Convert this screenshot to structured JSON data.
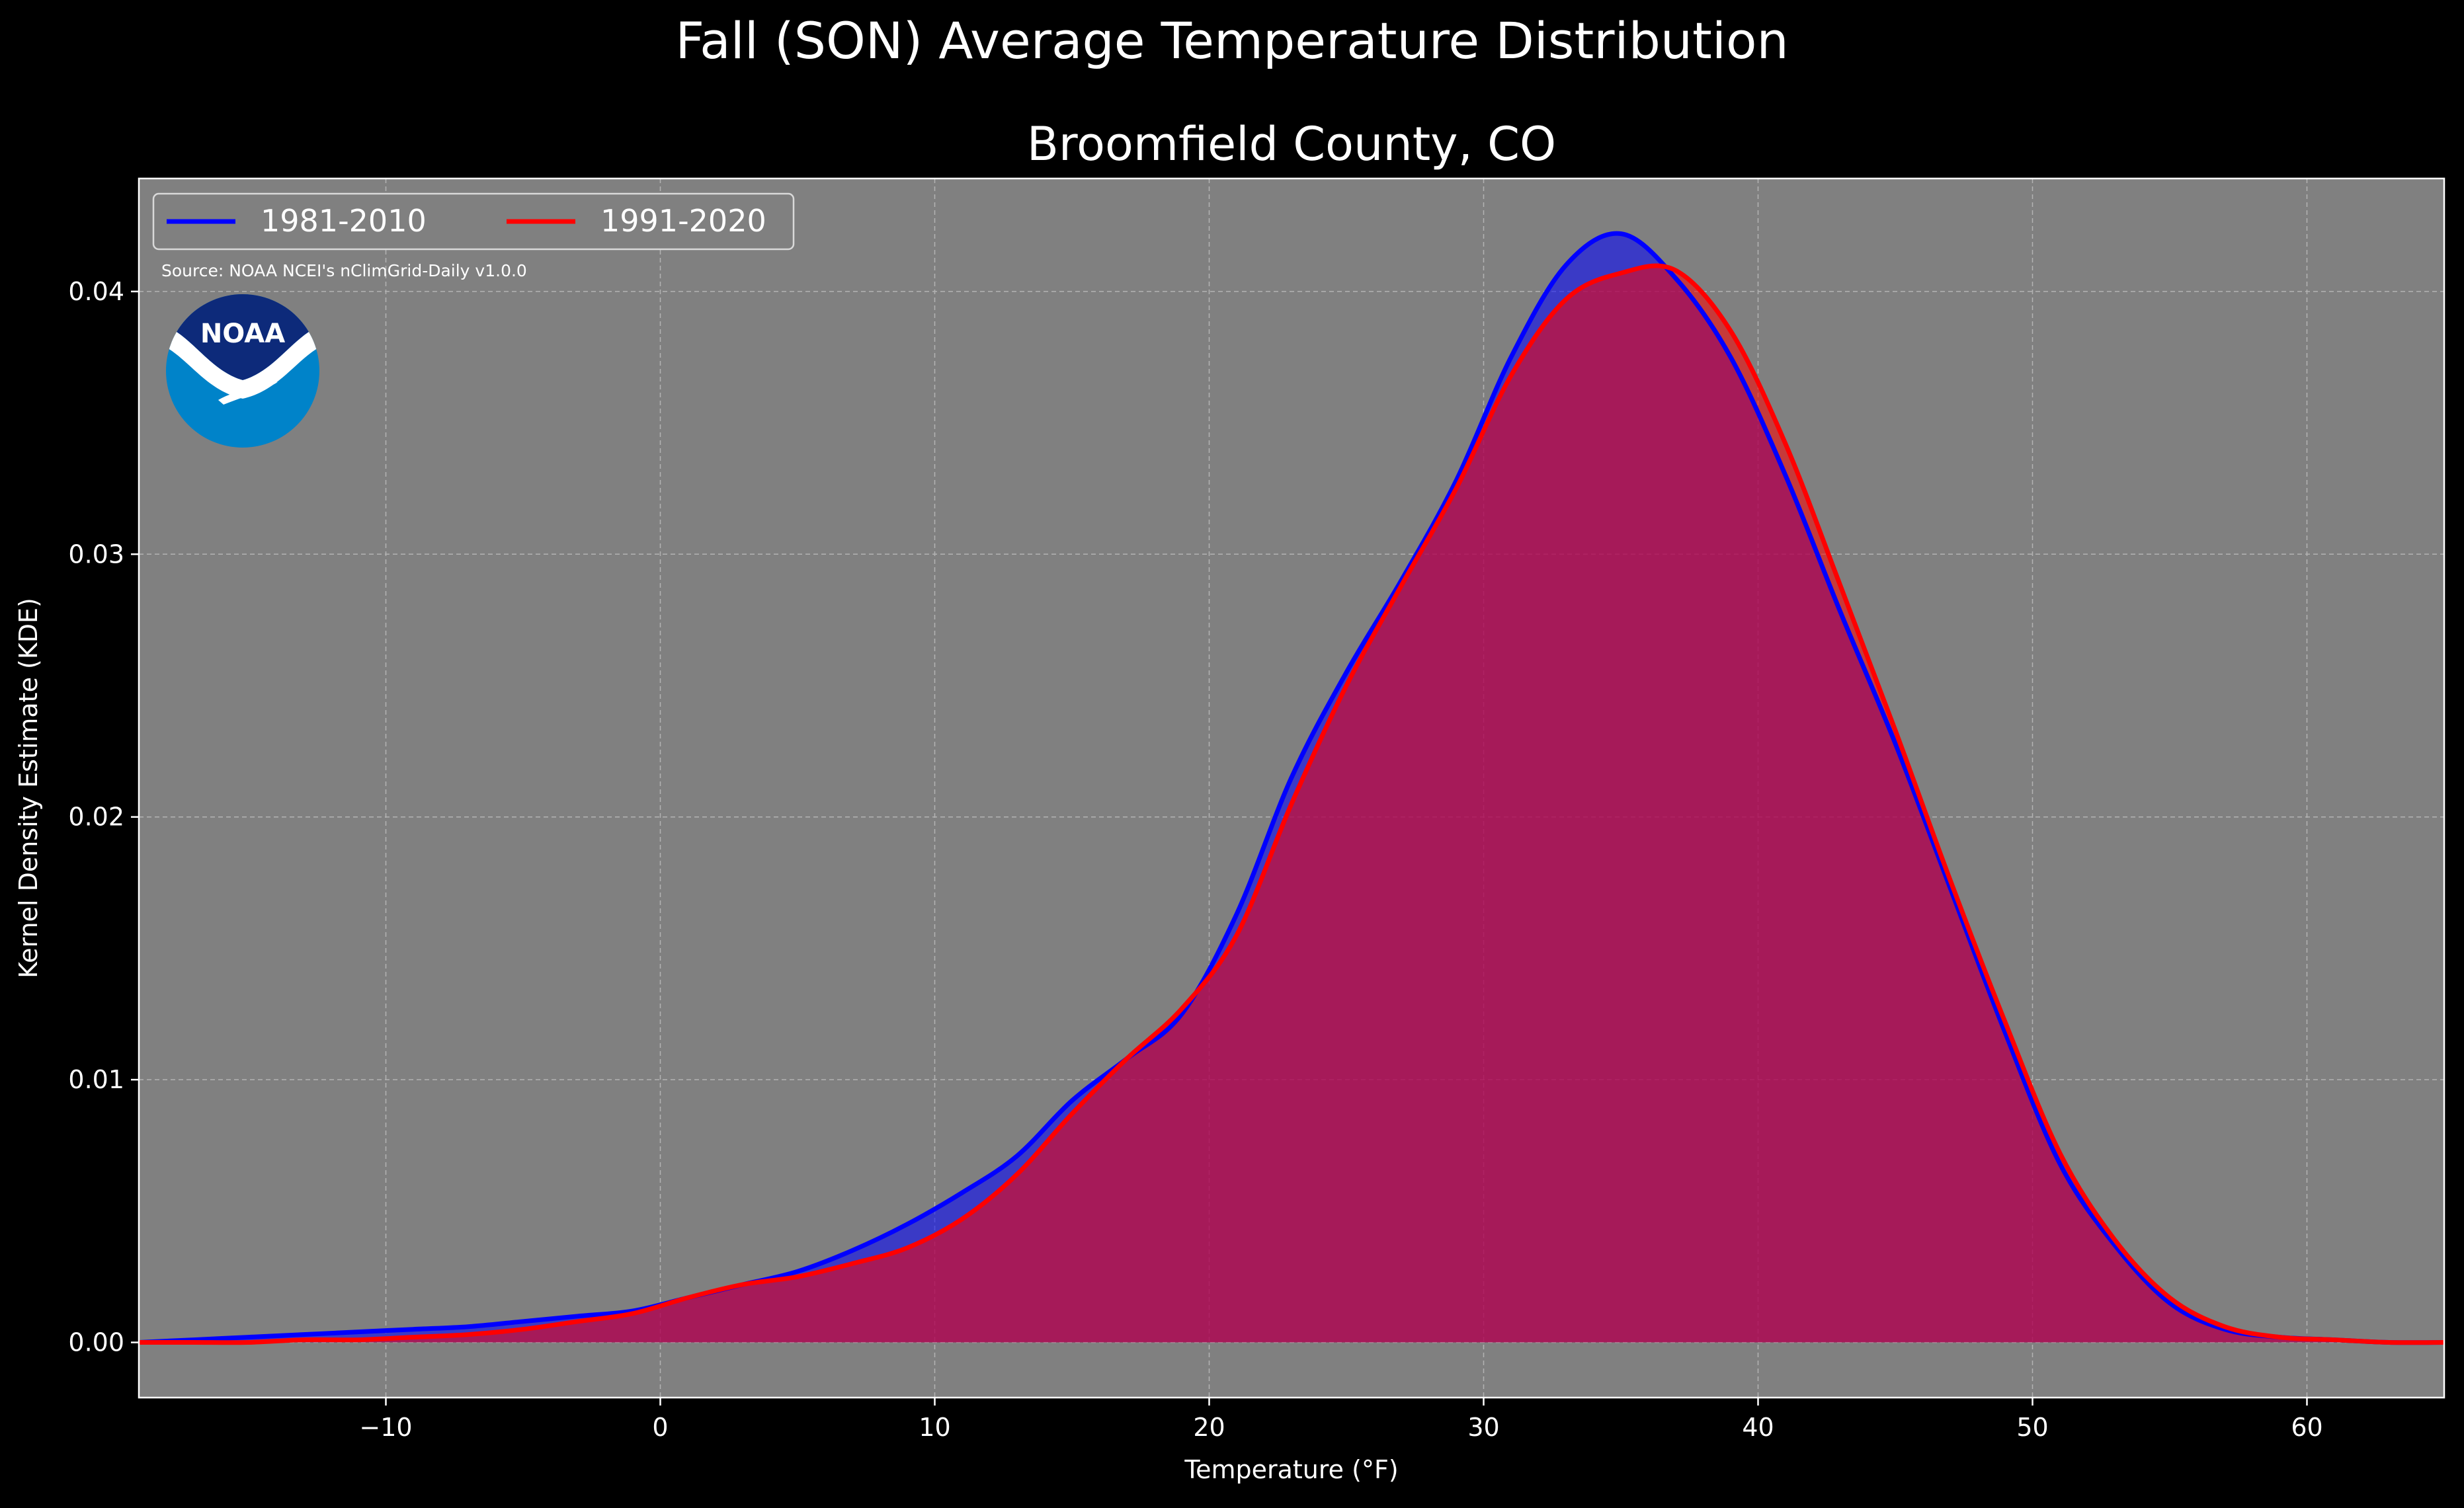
{
  "suptitle": "Fall (SON) Average Temperature Distribution",
  "chart_data": {
    "type": "area",
    "title": "Broomfield County, CO",
    "xlabel": "Temperature (°F)",
    "ylabel": "Kernel Density Estimate (KDE)",
    "xlim": [
      -19,
      65
    ],
    "ylim": [
      -0.0021,
      0.0443
    ],
    "xticks": [
      -10,
      0,
      10,
      20,
      30,
      40,
      50,
      60
    ],
    "xtick_labels": [
      "−10",
      "0",
      "10",
      "20",
      "30",
      "40",
      "50",
      "60"
    ],
    "yticks": [
      0.0,
      0.01,
      0.02,
      0.03,
      0.04
    ],
    "ytick_labels": [
      "0.00",
      "0.01",
      "0.02",
      "0.03",
      "0.04"
    ],
    "grid": true,
    "legend_position": "top-left",
    "annotation": "Source: NOAA NCEI's nClimGrid-Daily v1.0.0",
    "logo_text": "NOAA",
    "series": [
      {
        "name": "1981-2010",
        "color": "#0000ff",
        "x": [
          -19,
          -17,
          -15,
          -13,
          -11,
          -9,
          -7,
          -5,
          -3,
          -1,
          1,
          3,
          5,
          7,
          9,
          11,
          13,
          15,
          17,
          19,
          21,
          23,
          25,
          27,
          29,
          31,
          33,
          35,
          37,
          39,
          41,
          43,
          45,
          47,
          49,
          51,
          53,
          55,
          57,
          59,
          61,
          63,
          65
        ],
        "values": [
          0.0,
          0.0001,
          0.0002,
          0.0003,
          0.0004,
          0.0005,
          0.0006,
          0.0008,
          0.001,
          0.0012,
          0.0017,
          0.0022,
          0.0027,
          0.0035,
          0.0045,
          0.0057,
          0.0071,
          0.0092,
          0.0108,
          0.0125,
          0.0163,
          0.0215,
          0.0255,
          0.029,
          0.0328,
          0.0375,
          0.041,
          0.0422,
          0.0405,
          0.0375,
          0.033,
          0.0278,
          0.0228,
          0.0173,
          0.0118,
          0.0068,
          0.0037,
          0.0015,
          0.0005,
          0.0002,
          0.0001,
          0.0,
          0.0
        ]
      },
      {
        "name": "1991-2020",
        "color": "#ff0000",
        "x": [
          -19,
          -17,
          -15,
          -13,
          -11,
          -9,
          -7,
          -5,
          -3,
          -1,
          1,
          3,
          5,
          7,
          9,
          11,
          13,
          15,
          17,
          19,
          21,
          23,
          25,
          27,
          29,
          31,
          33,
          35,
          37,
          39,
          41,
          43,
          45,
          47,
          49,
          51,
          53,
          55,
          57,
          59,
          61,
          63,
          65
        ],
        "values": [
          0.0,
          0.0,
          0.0,
          0.0001,
          0.0001,
          0.0002,
          0.0003,
          0.0005,
          0.0008,
          0.0011,
          0.0017,
          0.0022,
          0.0025,
          0.003,
          0.0036,
          0.0047,
          0.0064,
          0.0087,
          0.0108,
          0.0127,
          0.0155,
          0.0205,
          0.025,
          0.0288,
          0.0325,
          0.0368,
          0.0397,
          0.0407,
          0.0408,
          0.0385,
          0.0342,
          0.0288,
          0.0233,
          0.0176,
          0.0122,
          0.0072,
          0.0039,
          0.0017,
          0.0006,
          0.0002,
          0.0001,
          0.0,
          0.0
        ]
      }
    ]
  }
}
